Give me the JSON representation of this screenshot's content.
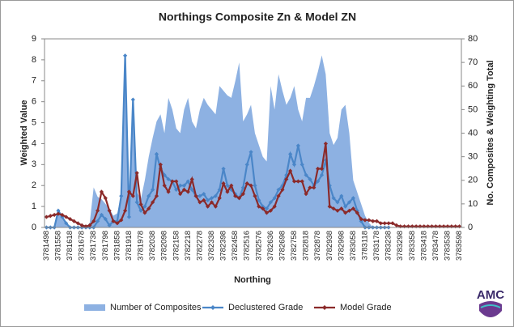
{
  "chart_data": {
    "type": "combo",
    "title": "Northings Composite Zn & Model ZN",
    "x_label": "Northing",
    "y_label": "Weighted Value",
    "y2_label": "No. Composites & Weighting Total",
    "logo": "AMC",
    "categories": [
      "3781498",
      null,
      null,
      "3781558",
      null,
      null,
      "3781618",
      null,
      null,
      "3781678",
      null,
      null,
      "3781738",
      null,
      null,
      "3781798",
      null,
      null,
      "3781858",
      null,
      null,
      "3781918",
      null,
      null,
      "3781978",
      null,
      null,
      "3782038",
      null,
      null,
      "3782098",
      null,
      null,
      "3782158",
      null,
      null,
      "3782218",
      null,
      null,
      "3782278",
      null,
      null,
      "3782338",
      null,
      null,
      "3782398",
      null,
      null,
      "3782458",
      null,
      null,
      "3782516",
      null,
      null,
      "3782576",
      null,
      null,
      "3782636",
      null,
      null,
      "3782698",
      null,
      null,
      "3782758",
      null,
      null,
      "3782818",
      null,
      null,
      "3782878",
      null,
      null,
      "3782938",
      null,
      null,
      "3782998",
      null,
      null,
      "3783058",
      null,
      null,
      "3783118",
      null,
      null,
      "3783178",
      null,
      null,
      "3783238",
      null,
      null,
      "3783298",
      null,
      null,
      "3783358",
      null,
      null,
      "3783418",
      null,
      null,
      "3783478",
      null,
      null,
      "3783538",
      null,
      null,
      "3783598"
    ],
    "series": [
      {
        "name": "Number of Composites",
        "kind": "area",
        "axis": "y2",
        "color": "#8db1e2",
        "values": [
          0,
          0,
          0,
          8,
          5,
          2,
          0,
          0,
          0,
          0,
          0,
          2,
          17,
          13,
          12,
          10,
          8,
          5,
          6,
          14,
          73,
          10,
          53,
          15,
          12,
          20,
          30,
          38,
          45,
          48,
          40,
          55,
          50,
          42,
          40,
          50,
          55,
          45,
          42,
          50,
          55,
          52,
          50,
          48,
          60,
          58,
          56,
          55,
          62,
          70,
          45,
          48,
          52,
          40,
          35,
          30,
          28,
          60,
          50,
          65,
          58,
          52,
          55,
          60,
          50,
          45,
          55,
          55,
          60,
          66,
          73,
          65,
          40,
          35,
          38,
          50,
          52,
          40,
          20,
          15,
          10,
          5,
          2,
          0,
          0,
          0,
          0,
          0,
          0,
          0,
          0,
          0,
          0,
          0,
          0,
          0,
          0,
          0,
          0,
          0,
          0,
          0,
          0,
          0,
          0,
          0
        ]
      },
      {
        "name": "Declustered Grade",
        "kind": "line",
        "color": "#4a86c8",
        "values": [
          0,
          0,
          0,
          0.8,
          0.5,
          0.2,
          0,
          0,
          0,
          0,
          0,
          0,
          0,
          0.3,
          0.6,
          0.4,
          0.1,
          0.3,
          0.3,
          1.5,
          8.2,
          0.5,
          6.1,
          1.2,
          0.8,
          1.0,
          1.5,
          1.8,
          3.5,
          2.8,
          2.5,
          2.3,
          2.2,
          1.8,
          2.0,
          2.0,
          2.2,
          1.8,
          1.5,
          1.5,
          1.6,
          1.3,
          1.4,
          1.5,
          1.8,
          2.8,
          2.0,
          1.8,
          1.6,
          1.4,
          1.9,
          3.0,
          3.6,
          2.0,
          1.3,
          1.0,
          0.9,
          1.2,
          1.4,
          1.8,
          2.0,
          2.5,
          3.5,
          3.0,
          3.9,
          3.0,
          2.5,
          2.3,
          2.0,
          2.2,
          2.5,
          3.2,
          2.0,
          1.4,
          1.2,
          1.5,
          1.0,
          1.2,
          1.4,
          0.8,
          0.3,
          0,
          0,
          0,
          0,
          0,
          0,
          0,
          null,
          null,
          null,
          null,
          null,
          null,
          null,
          null,
          null,
          null,
          null,
          null,
          null,
          null,
          null,
          null,
          null,
          null
        ]
      },
      {
        "name": "Model Grade",
        "kind": "line",
        "color": "#8b2a2a",
        "values": [
          0.5,
          0.55,
          0.6,
          0.65,
          0.6,
          0.5,
          0.4,
          0.3,
          0.2,
          0.1,
          0.05,
          0.1,
          0.3,
          0.8,
          1.7,
          1.4,
          0.8,
          0.3,
          0.2,
          0.35,
          0.8,
          1.7,
          1.5,
          2.6,
          1.1,
          0.7,
          0.9,
          1.2,
          1.5,
          3.0,
          2.0,
          1.7,
          2.2,
          2.2,
          1.6,
          1.8,
          1.7,
          2.3,
          1.5,
          1.2,
          1.3,
          1.0,
          1.2,
          1.0,
          1.4,
          2.1,
          1.7,
          2.0,
          1.5,
          1.4,
          1.6,
          2.1,
          2.0,
          1.5,
          1.0,
          0.9,
          0.7,
          0.8,
          1.0,
          1.5,
          1.8,
          2.3,
          2.7,
          2.2,
          2.2,
          2.2,
          1.6,
          1.9,
          1.9,
          2.8,
          2.8,
          4.0,
          1.0,
          0.9,
          0.8,
          0.9,
          0.7,
          0.8,
          0.9,
          0.7,
          0.4,
          0.35,
          0.35,
          0.3,
          0.3,
          0.2,
          0.2,
          0.2,
          0.2,
          0.1,
          0.05,
          0.05,
          0.05,
          0.05,
          0.05,
          0.05,
          0.05,
          0.05,
          0.05,
          0.05,
          0.05,
          0.05,
          0.05,
          0.05,
          0.05,
          0.05
        ]
      }
    ],
    "ylim": [
      0,
      9
    ],
    "yticks": [
      0,
      1,
      2,
      3,
      4,
      5,
      6,
      7,
      8,
      9
    ],
    "y2lim": [
      0,
      80
    ],
    "y2ticks": [
      0,
      10,
      20,
      30,
      40,
      50,
      60,
      70,
      80
    ],
    "legend": "bottom"
  }
}
